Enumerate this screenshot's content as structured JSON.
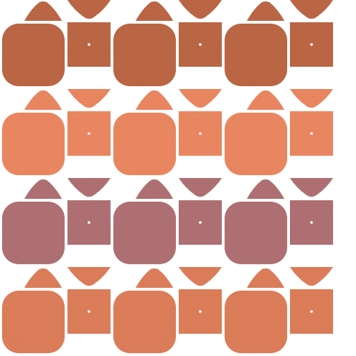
{
  "pattern": {
    "rows": [
      {
        "name": "rust",
        "color": "#c06a48",
        "shade": "#a85838"
      },
      {
        "name": "salmon",
        "color": "#ee8c66",
        "shade": "#d87450"
      },
      {
        "name": "mauve",
        "color": "#b47478",
        "shade": "#9c6064"
      },
      {
        "name": "coral",
        "color": "#e2825e",
        "shade": "#c86c4a"
      }
    ],
    "columns": 3,
    "background": "#ffffff",
    "dot_color": "#f4ecea",
    "texture": "woven"
  }
}
